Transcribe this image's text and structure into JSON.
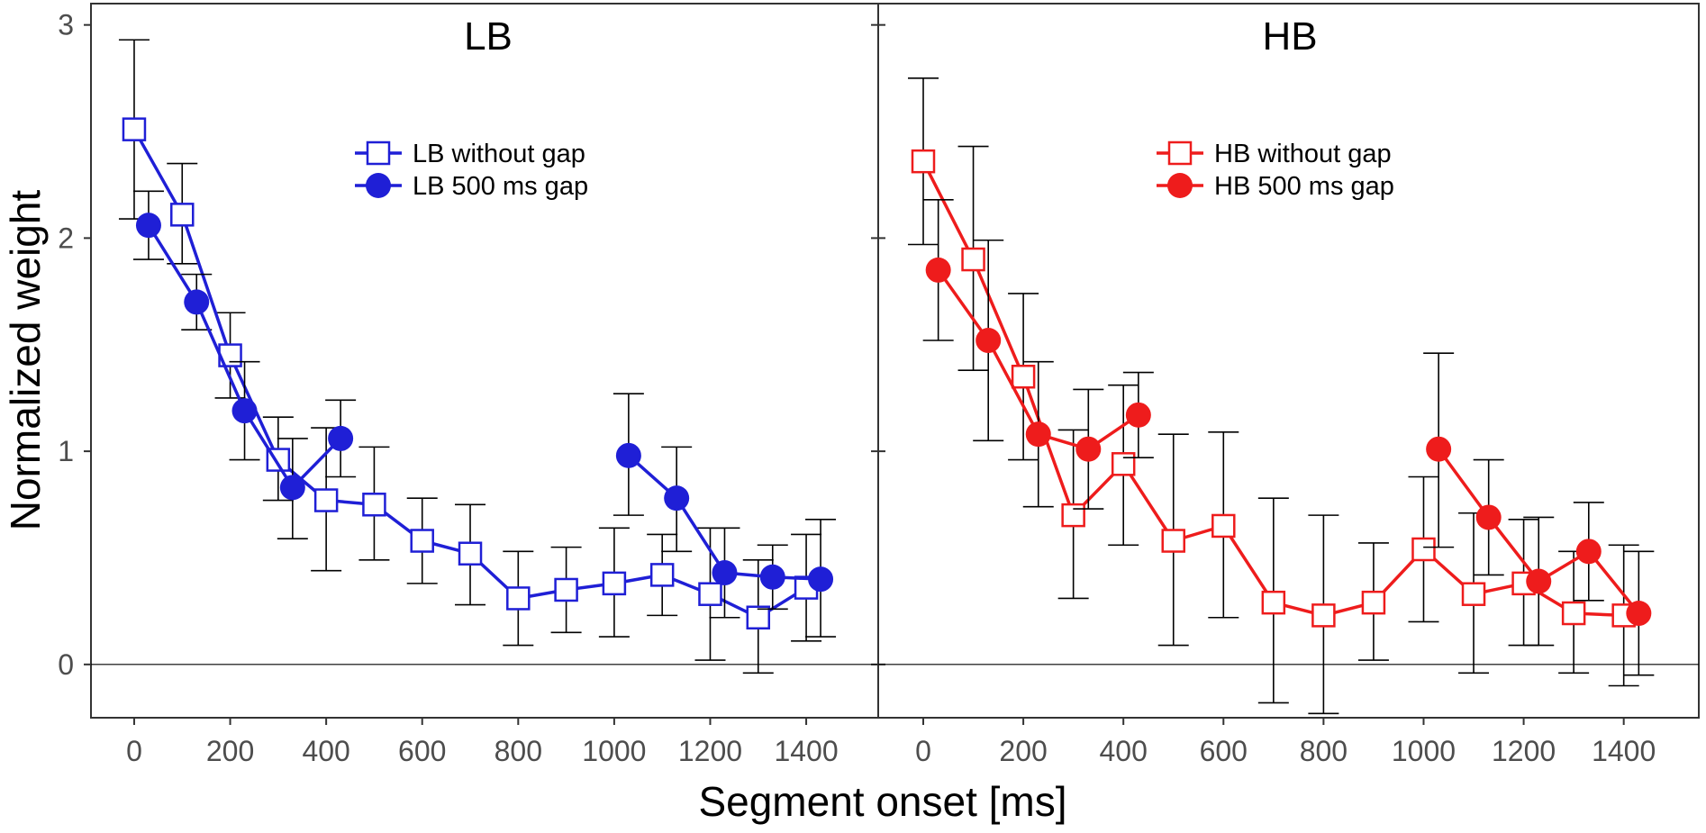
{
  "chart_data": {
    "type": "line",
    "xlabel": "Segment onset [ms]",
    "ylabel": "Normalized weight",
    "xlim": [
      -90,
      1550
    ],
    "ylim": [
      -0.25,
      3.1
    ],
    "x_ticks": [
      0,
      200,
      400,
      600,
      800,
      1000,
      1200,
      1400
    ],
    "y_ticks": [
      0,
      1,
      2,
      3
    ],
    "reference_line": 0,
    "panels": [
      {
        "title": "LB",
        "color": "#1f1fd6",
        "series": [
          {
            "name": "LB without gap",
            "marker": "open-square",
            "points": [
              {
                "x": 0,
                "y": 2.51,
                "lo": 2.09,
                "hi": 2.93
              },
              {
                "x": 100,
                "y": 2.11,
                "lo": 1.88,
                "hi": 2.35
              },
              {
                "x": 200,
                "y": 1.45,
                "lo": 1.25,
                "hi": 1.65
              },
              {
                "x": 300,
                "y": 0.96,
                "lo": 0.77,
                "hi": 1.16
              },
              {
                "x": 400,
                "y": 0.77,
                "lo": 0.44,
                "hi": 1.11
              },
              {
                "x": 500,
                "y": 0.75,
                "lo": 0.49,
                "hi": 1.02
              },
              {
                "x": 600,
                "y": 0.58,
                "lo": 0.38,
                "hi": 0.78
              },
              {
                "x": 700,
                "y": 0.52,
                "lo": 0.28,
                "hi": 0.75
              },
              {
                "x": 800,
                "y": 0.31,
                "lo": 0.09,
                "hi": 0.53
              },
              {
                "x": 900,
                "y": 0.35,
                "lo": 0.15,
                "hi": 0.55
              },
              {
                "x": 1000,
                "y": 0.38,
                "lo": 0.13,
                "hi": 0.64
              },
              {
                "x": 1100,
                "y": 0.42,
                "lo": 0.23,
                "hi": 0.61
              },
              {
                "x": 1200,
                "y": 0.33,
                "lo": 0.02,
                "hi": 0.64
              },
              {
                "x": 1300,
                "y": 0.22,
                "lo": -0.04,
                "hi": 0.49
              },
              {
                "x": 1400,
                "y": 0.36,
                "lo": 0.11,
                "hi": 0.61
              }
            ]
          },
          {
            "name": "LB 500 ms gap",
            "marker": "filled-circle",
            "segments": [
              [
                {
                  "x": 30,
                  "y": 2.06,
                  "lo": 1.9,
                  "hi": 2.22
                },
                {
                  "x": 130,
                  "y": 1.7,
                  "lo": 1.57,
                  "hi": 1.83
                },
                {
                  "x": 230,
                  "y": 1.19,
                  "lo": 0.96,
                  "hi": 1.42
                },
                {
                  "x": 330,
                  "y": 0.83,
                  "lo": 0.59,
                  "hi": 1.06
                },
                {
                  "x": 430,
                  "y": 1.06,
                  "lo": 0.88,
                  "hi": 1.24
                }
              ],
              [
                {
                  "x": 1030,
                  "y": 0.98,
                  "lo": 0.7,
                  "hi": 1.27
                },
                {
                  "x": 1130,
                  "y": 0.78,
                  "lo": 0.53,
                  "hi": 1.02
                },
                {
                  "x": 1230,
                  "y": 0.43,
                  "lo": 0.22,
                  "hi": 0.64
                },
                {
                  "x": 1330,
                  "y": 0.41,
                  "lo": 0.26,
                  "hi": 0.56
                },
                {
                  "x": 1430,
                  "y": 0.4,
                  "lo": 0.13,
                  "hi": 0.68
                }
              ]
            ]
          }
        ]
      },
      {
        "title": "HB",
        "color": "#ee1c1c",
        "series": [
          {
            "name": "HB without gap",
            "marker": "open-square",
            "points": [
              {
                "x": 0,
                "y": 2.36,
                "lo": 1.97,
                "hi": 2.75
              },
              {
                "x": 100,
                "y": 1.9,
                "lo": 1.38,
                "hi": 2.43
              },
              {
                "x": 200,
                "y": 1.35,
                "lo": 0.96,
                "hi": 1.74
              },
              {
                "x": 300,
                "y": 0.7,
                "lo": 0.31,
                "hi": 1.1
              },
              {
                "x": 400,
                "y": 0.94,
                "lo": 0.56,
                "hi": 1.31
              },
              {
                "x": 500,
                "y": 0.58,
                "lo": 0.09,
                "hi": 1.08
              },
              {
                "x": 600,
                "y": 0.65,
                "lo": 0.22,
                "hi": 1.09
              },
              {
                "x": 700,
                "y": 0.29,
                "lo": -0.18,
                "hi": 0.78
              },
              {
                "x": 800,
                "y": 0.23,
                "lo": -0.23,
                "hi": 0.7
              },
              {
                "x": 900,
                "y": 0.29,
                "lo": 0.02,
                "hi": 0.57
              },
              {
                "x": 1000,
                "y": 0.54,
                "lo": 0.2,
                "hi": 0.88
              },
              {
                "x": 1100,
                "y": 0.33,
                "lo": -0.04,
                "hi": 0.71
              },
              {
                "x": 1200,
                "y": 0.38,
                "lo": 0.09,
                "hi": 0.68
              },
              {
                "x": 1300,
                "y": 0.24,
                "lo": -0.04,
                "hi": 0.53
              },
              {
                "x": 1400,
                "y": 0.23,
                "lo": -0.1,
                "hi": 0.56
              }
            ]
          },
          {
            "name": "HB 500 ms gap",
            "marker": "filled-circle",
            "segments": [
              [
                {
                  "x": 30,
                  "y": 1.85,
                  "lo": 1.52,
                  "hi": 2.18
                },
                {
                  "x": 130,
                  "y": 1.52,
                  "lo": 1.05,
                  "hi": 1.99
                },
                {
                  "x": 230,
                  "y": 1.08,
                  "lo": 0.74,
                  "hi": 1.42
                },
                {
                  "x": 330,
                  "y": 1.01,
                  "lo": 0.73,
                  "hi": 1.29
                },
                {
                  "x": 430,
                  "y": 1.17,
                  "lo": 0.97,
                  "hi": 1.37
                }
              ],
              [
                {
                  "x": 1030,
                  "y": 1.01,
                  "lo": 0.55,
                  "hi": 1.46
                },
                {
                  "x": 1130,
                  "y": 0.69,
                  "lo": 0.42,
                  "hi": 0.96
                },
                {
                  "x": 1230,
                  "y": 0.39,
                  "lo": 0.09,
                  "hi": 0.69
                },
                {
                  "x": 1330,
                  "y": 0.53,
                  "lo": 0.3,
                  "hi": 0.76
                },
                {
                  "x": 1430,
                  "y": 0.24,
                  "lo": -0.05,
                  "hi": 0.53
                }
              ]
            ]
          }
        ]
      }
    ]
  }
}
